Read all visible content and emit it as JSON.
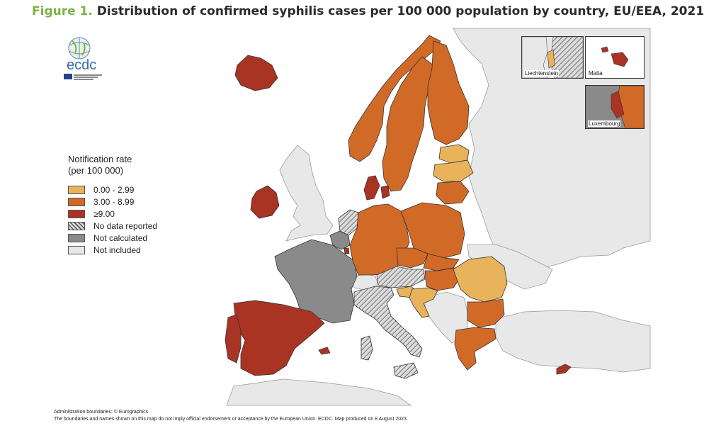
{
  "title": {
    "figure_label": "Figure 1.",
    "text": "Distribution of confirmed syphilis cases per 100 000 population by country, EU/EEA, 2021"
  },
  "logo": {
    "name": "ecdc"
  },
  "legend": {
    "title_line1": "Notification rate",
    "title_line2": "(per 100 000)",
    "items": [
      {
        "label": "0.00 - 2.99",
        "color": "#e8b35a"
      },
      {
        "label": "3.00 - 8.99",
        "color": "#d26a27"
      },
      {
        "label": "≥9.00",
        "color": "#a93424"
      },
      {
        "label": "No data reported",
        "color": "hatched"
      },
      {
        "label": "Not calculated",
        "color": "#8a8a8a"
      },
      {
        "label": "Not included",
        "color": "#e8e8e8"
      }
    ]
  },
  "colors": {
    "low": "#e8b35a",
    "mid": "#d26a27",
    "high": "#a93424",
    "not_calculated": "#8a8a8a",
    "not_included": "#e8e8e8",
    "sea": "#ffffff"
  },
  "countries": [
    {
      "name": "Iceland",
      "category": "high"
    },
    {
      "name": "Ireland",
      "category": "high"
    },
    {
      "name": "Norway",
      "category": "mid"
    },
    {
      "name": "Sweden",
      "category": "mid"
    },
    {
      "name": "Finland",
      "category": "mid"
    },
    {
      "name": "Estonia",
      "category": "low"
    },
    {
      "name": "Latvia",
      "category": "low"
    },
    {
      "name": "Lithuania",
      "category": "mid"
    },
    {
      "name": "Denmark",
      "category": "high"
    },
    {
      "name": "Netherlands",
      "category": "no_data"
    },
    {
      "name": "Belgium",
      "category": "not_calculated"
    },
    {
      "name": "Luxembourg",
      "category": "high"
    },
    {
      "name": "France",
      "category": "not_calculated"
    },
    {
      "name": "Germany",
      "category": "mid"
    },
    {
      "name": "Poland",
      "category": "mid"
    },
    {
      "name": "Czechia",
      "category": "mid"
    },
    {
      "name": "Slovakia",
      "category": "mid"
    },
    {
      "name": "Austria",
      "category": "no_data"
    },
    {
      "name": "Hungary",
      "category": "mid"
    },
    {
      "name": "Slovenia",
      "category": "low"
    },
    {
      "name": "Croatia",
      "category": "low"
    },
    {
      "name": "Romania",
      "category": "low"
    },
    {
      "name": "Bulgaria",
      "category": "mid"
    },
    {
      "name": "Greece",
      "category": "mid"
    },
    {
      "name": "Cyprus",
      "category": "high"
    },
    {
      "name": "Italy",
      "category": "no_data"
    },
    {
      "name": "Spain",
      "category": "high"
    },
    {
      "name": "Portugal",
      "category": "high"
    },
    {
      "name": "Malta",
      "category": "high"
    },
    {
      "name": "Liechtenstein",
      "category": "low"
    }
  ],
  "insets": [
    {
      "label": "Liechtenstein"
    },
    {
      "label": "Malta"
    },
    {
      "label": "Luxembourg"
    }
  ],
  "footer": {
    "line1": "Administration boundaries: © Eurographics",
    "line2": "The boundaries and names shown on this map do not imply official endorsement or acceptance by the European Union. ECDC. Map produced on 8 August 2023."
  }
}
